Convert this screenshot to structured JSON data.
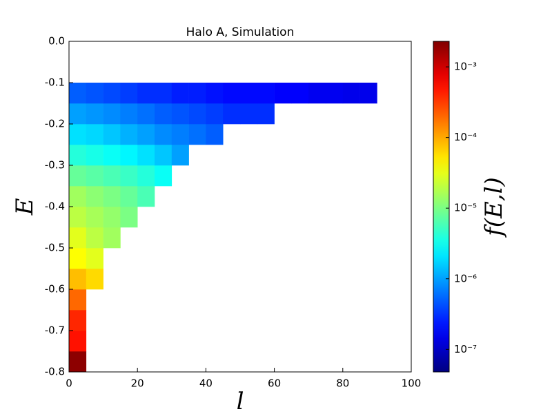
{
  "chart_data": {
    "type": "heatmap",
    "title": "Halo A, Simulation",
    "x_label": "l",
    "y_label": "E",
    "colorbar_label": "f(E,l)",
    "xlim": [
      0,
      100
    ],
    "xticks": [
      0,
      20,
      40,
      60,
      80,
      100
    ],
    "ylim": [
      -0.8,
      0
    ],
    "yticks": [
      -0.8,
      -0.7,
      -0.6,
      -0.5,
      -0.4,
      -0.3,
      -0.2,
      -0.1,
      {
        "value": 0,
        "label": "0.0"
      }
    ],
    "x_bins": [
      0,
      5,
      10,
      15,
      20,
      25,
      30,
      35,
      40,
      45,
      50,
      55,
      60,
      65,
      70,
      75,
      80,
      85,
      90,
      95
    ],
    "y_bins": [
      -0.8,
      -0.75,
      -0.7,
      -0.65,
      -0.6,
      -0.55,
      -0.5,
      -0.45,
      -0.4,
      -0.35,
      -0.3,
      -0.25,
      -0.2,
      -0.15,
      -0.1
    ],
    "z": [
      [
        0.002,
        null,
        null,
        null,
        null,
        null,
        null,
        null,
        null,
        null,
        null,
        null,
        null,
        null,
        null,
        null,
        null,
        null,
        null
      ],
      [
        0.0005,
        null,
        null,
        null,
        null,
        null,
        null,
        null,
        null,
        null,
        null,
        null,
        null,
        null,
        null,
        null,
        null,
        null,
        null
      ],
      [
        0.0004,
        null,
        null,
        null,
        null,
        null,
        null,
        null,
        null,
        null,
        null,
        null,
        null,
        null,
        null,
        null,
        null,
        null,
        null
      ],
      [
        0.0002,
        null,
        null,
        null,
        null,
        null,
        null,
        null,
        null,
        null,
        null,
        null,
        null,
        null,
        null,
        null,
        null,
        null,
        null
      ],
      [
        8e-05,
        6e-05,
        null,
        null,
        null,
        null,
        null,
        null,
        null,
        null,
        null,
        null,
        null,
        null,
        null,
        null,
        null,
        null,
        null
      ],
      [
        4e-05,
        3e-05,
        null,
        null,
        null,
        null,
        null,
        null,
        null,
        null,
        null,
        null,
        null,
        null,
        null,
        null,
        null,
        null,
        null
      ],
      [
        3e-05,
        2e-05,
        1.5e-05,
        null,
        null,
        null,
        null,
        null,
        null,
        null,
        null,
        null,
        null,
        null,
        null,
        null,
        null,
        null,
        null
      ],
      [
        2e-05,
        1.6e-05,
        1.3e-05,
        1e-05,
        null,
        null,
        null,
        null,
        null,
        null,
        null,
        null,
        null,
        null,
        null,
        null,
        null,
        null,
        null
      ],
      [
        1.5e-05,
        1.2e-05,
        1e-05,
        8e-06,
        6e-06,
        null,
        null,
        null,
        null,
        null,
        null,
        null,
        null,
        null,
        null,
        null,
        null,
        null,
        null
      ],
      [
        8e-06,
        7e-06,
        6e-06,
        5e-06,
        4e-06,
        3e-06,
        null,
        null,
        null,
        null,
        null,
        null,
        null,
        null,
        null,
        null,
        null,
        null,
        null
      ],
      [
        4e-06,
        3.5e-06,
        3e-06,
        2.5e-06,
        2e-06,
        1.5e-06,
        1e-06,
        null,
        null,
        null,
        null,
        null,
        null,
        null,
        null,
        null,
        null,
        null,
        null
      ],
      [
        2e-06,
        1.8e-06,
        1.5e-06,
        1.2e-06,
        1e-06,
        8e-07,
        7e-07,
        6e-07,
        5e-07,
        null,
        null,
        null,
        null,
        null,
        null,
        null,
        null,
        null,
        null
      ],
      [
        1e-06,
        9e-07,
        8e-07,
        7e-07,
        6e-07,
        5e-07,
        4.5e-07,
        4e-07,
        3.5e-07,
        3e-07,
        3e-07,
        3e-07,
        null,
        null,
        null,
        null,
        null,
        null,
        null
      ],
      [
        5e-07,
        4.5e-07,
        4e-07,
        3.5e-07,
        3e-07,
        3e-07,
        2.5e-07,
        2.5e-07,
        2.2e-07,
        2e-07,
        2e-07,
        2e-07,
        1.8e-07,
        1.8e-07,
        1.6e-07,
        1.6e-07,
        1.5e-07,
        1.5e-07,
        null
      ]
    ],
    "colorscale": "jet",
    "log_color": true,
    "clim": [
      4.8e-08,
      0.0023
    ],
    "cticks": [
      {
        "value": 1e-07,
        "label": "10⁻⁷"
      },
      {
        "value": 1e-06,
        "label": "10⁻⁶"
      },
      {
        "value": 1e-05,
        "label": "10⁻⁵"
      },
      {
        "value": 0.0001,
        "label": "10⁻⁴"
      },
      {
        "value": 0.001,
        "label": "10⁻³"
      }
    ]
  }
}
